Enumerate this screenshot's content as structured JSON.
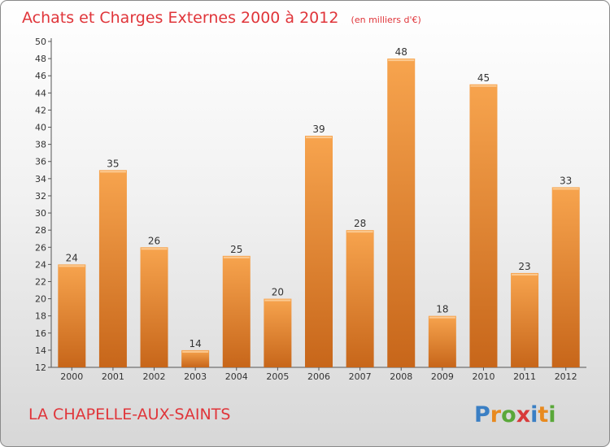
{
  "chart_data": {
    "type": "bar",
    "title": "Achats et Charges Externes 2000 à 2012",
    "unit": "(en milliers d'€)",
    "categories": [
      "2000",
      "2001",
      "2002",
      "2003",
      "2004",
      "2005",
      "2006",
      "2007",
      "2008",
      "2009",
      "2010",
      "2011",
      "2012"
    ],
    "values": [
      24,
      35,
      26,
      14,
      25,
      20,
      39,
      28,
      48,
      18,
      45,
      23,
      33
    ],
    "ylim": [
      12,
      50
    ],
    "ytick_step": 2,
    "grid": false,
    "data_labels": true,
    "bar_colors": {
      "light": "#f7a44e",
      "dark": "#c7661a"
    }
  },
  "commune": "LA CHAPELLE-AUX-SAINTS",
  "logo": {
    "text": "Proxiti",
    "letters": [
      "P",
      "r",
      "o",
      "x",
      "i",
      "t",
      "i"
    ],
    "colors": [
      "#3a7fc4",
      "#e88a1f",
      "#5aa83a",
      "#d83a3a",
      "#3a7fc4",
      "#e88a1f",
      "#5aa83a"
    ]
  },
  "colors": {
    "accent": "#e0353a",
    "frame_border": "#8a8a8a"
  }
}
